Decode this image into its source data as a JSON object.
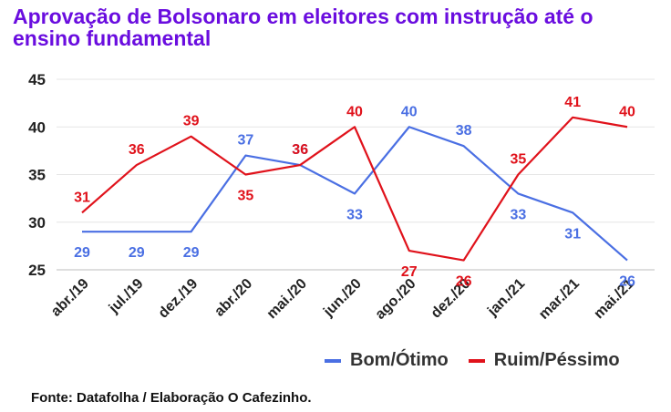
{
  "title": "Aprovação de Bolsonaro em eleitores com instrução até o ensino fundamental",
  "source": "Fonte: Datafolha / Elaboração O Cafezinho.",
  "chart_data": {
    "type": "line",
    "categories": [
      "abr./19",
      "jul./19",
      "dez./19",
      "abr./20",
      "mai./20",
      "jun./20",
      "ago./20",
      "dez./20",
      "jan./21",
      "mar./21",
      "mai./21"
    ],
    "series": [
      {
        "name": "Bom/Ótimo",
        "color": "#4a6fe3",
        "values": [
          29,
          29,
          29,
          37,
          36,
          33,
          40,
          38,
          33,
          31,
          26
        ]
      },
      {
        "name": "Ruim/Péssimo",
        "color": "#e0121b",
        "values": [
          31,
          36,
          39,
          35,
          36,
          40,
          27,
          26,
          35,
          41,
          40
        ]
      }
    ],
    "ylim": [
      25,
      45
    ],
    "yticks": [
      25,
      30,
      35,
      40,
      45
    ],
    "grid": true,
    "legend_position": "bottom-right"
  }
}
